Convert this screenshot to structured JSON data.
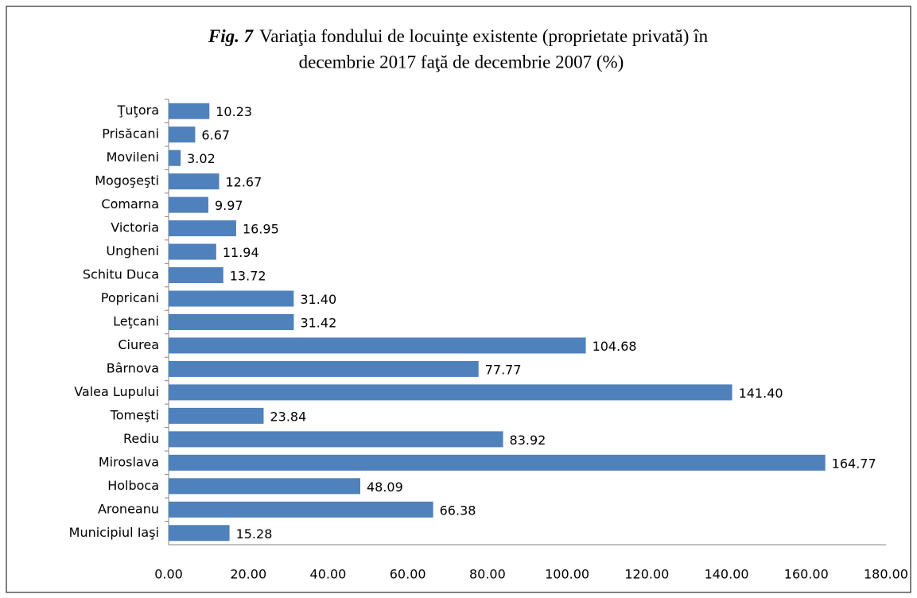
{
  "chart_data": {
    "type": "bar",
    "orientation": "horizontal",
    "figure_label": "Fig. 7",
    "title_lines": [
      "Variaţia fondului de locuinţe existente (proprietate privată) în",
      "decembrie 2017 faţă de decembrie 2007 (%)"
    ],
    "categories": [
      "Ţuţora",
      "Prisăcani",
      "Movileni",
      "Mogoşeşti",
      "Comarna",
      "Victoria",
      "Ungheni",
      "Schitu Duca",
      "Popricani",
      "Leţcani",
      "Ciurea",
      "Bârnova",
      "Valea Lupului",
      "Tomeşti",
      "Rediu",
      "Miroslava",
      "Holboca",
      "Aroneanu",
      "Municipiul Iaşi"
    ],
    "values": [
      10.23,
      6.67,
      3.02,
      12.67,
      9.97,
      16.95,
      11.94,
      13.72,
      31.4,
      31.42,
      104.68,
      77.77,
      141.4,
      23.84,
      83.92,
      164.77,
      48.09,
      66.38,
      15.28
    ],
    "value_labels": [
      "10.23",
      "6.67",
      "3.02",
      "12.67",
      "9.97",
      "16.95",
      "11.94",
      "13.72",
      "31.40",
      "31.42",
      "104.68",
      "77.77",
      "141.40",
      "23.84",
      "83.92",
      "164.77",
      "48.09",
      "66.38",
      "15.28"
    ],
    "color": "#4f81bd",
    "xlim": [
      0,
      180
    ],
    "xticks": [
      {
        "value": 0,
        "label": "0.00"
      },
      {
        "value": 20,
        "label": "20.00"
      },
      {
        "value": 40,
        "label": "40.00"
      },
      {
        "value": 60,
        "label": "60.00"
      },
      {
        "value": 80,
        "label": "80.00"
      },
      {
        "value": 100,
        "label": "100.00"
      },
      {
        "value": 120,
        "label": "120.00"
      },
      {
        "value": 140,
        "label": "140.00"
      },
      {
        "value": 160,
        "label": "160.00"
      },
      {
        "value": 180,
        "label": "180.00"
      }
    ],
    "grid": false
  }
}
